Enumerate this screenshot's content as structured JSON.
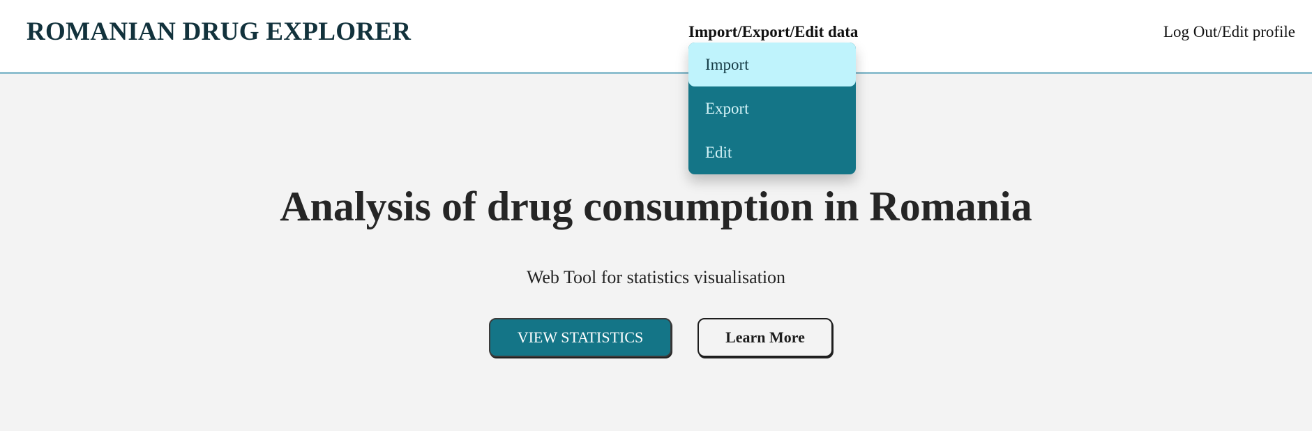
{
  "header": {
    "brand": "ROMANIAN DRUG EXPLORER",
    "data_menu_label": "Import/Export/Edit data",
    "account_label": "Log Out/Edit profile"
  },
  "dropdown": {
    "items": [
      {
        "label": "Import",
        "state": "hovered"
      },
      {
        "label": "Export"
      },
      {
        "label": "Edit"
      }
    ]
  },
  "hero": {
    "title": "Analysis of drug consumption in Romania",
    "subtitle": "Web Tool for statistics visualisation",
    "primary_button": "VIEW STATISTICS",
    "secondary_button": "Learn More"
  },
  "colors": {
    "accent": "#147587",
    "dropdown_highlight": "#bff3fc",
    "header_border": "#8fbfcf",
    "page_background": "#f3f3f3",
    "brand_text": "#12323c"
  }
}
